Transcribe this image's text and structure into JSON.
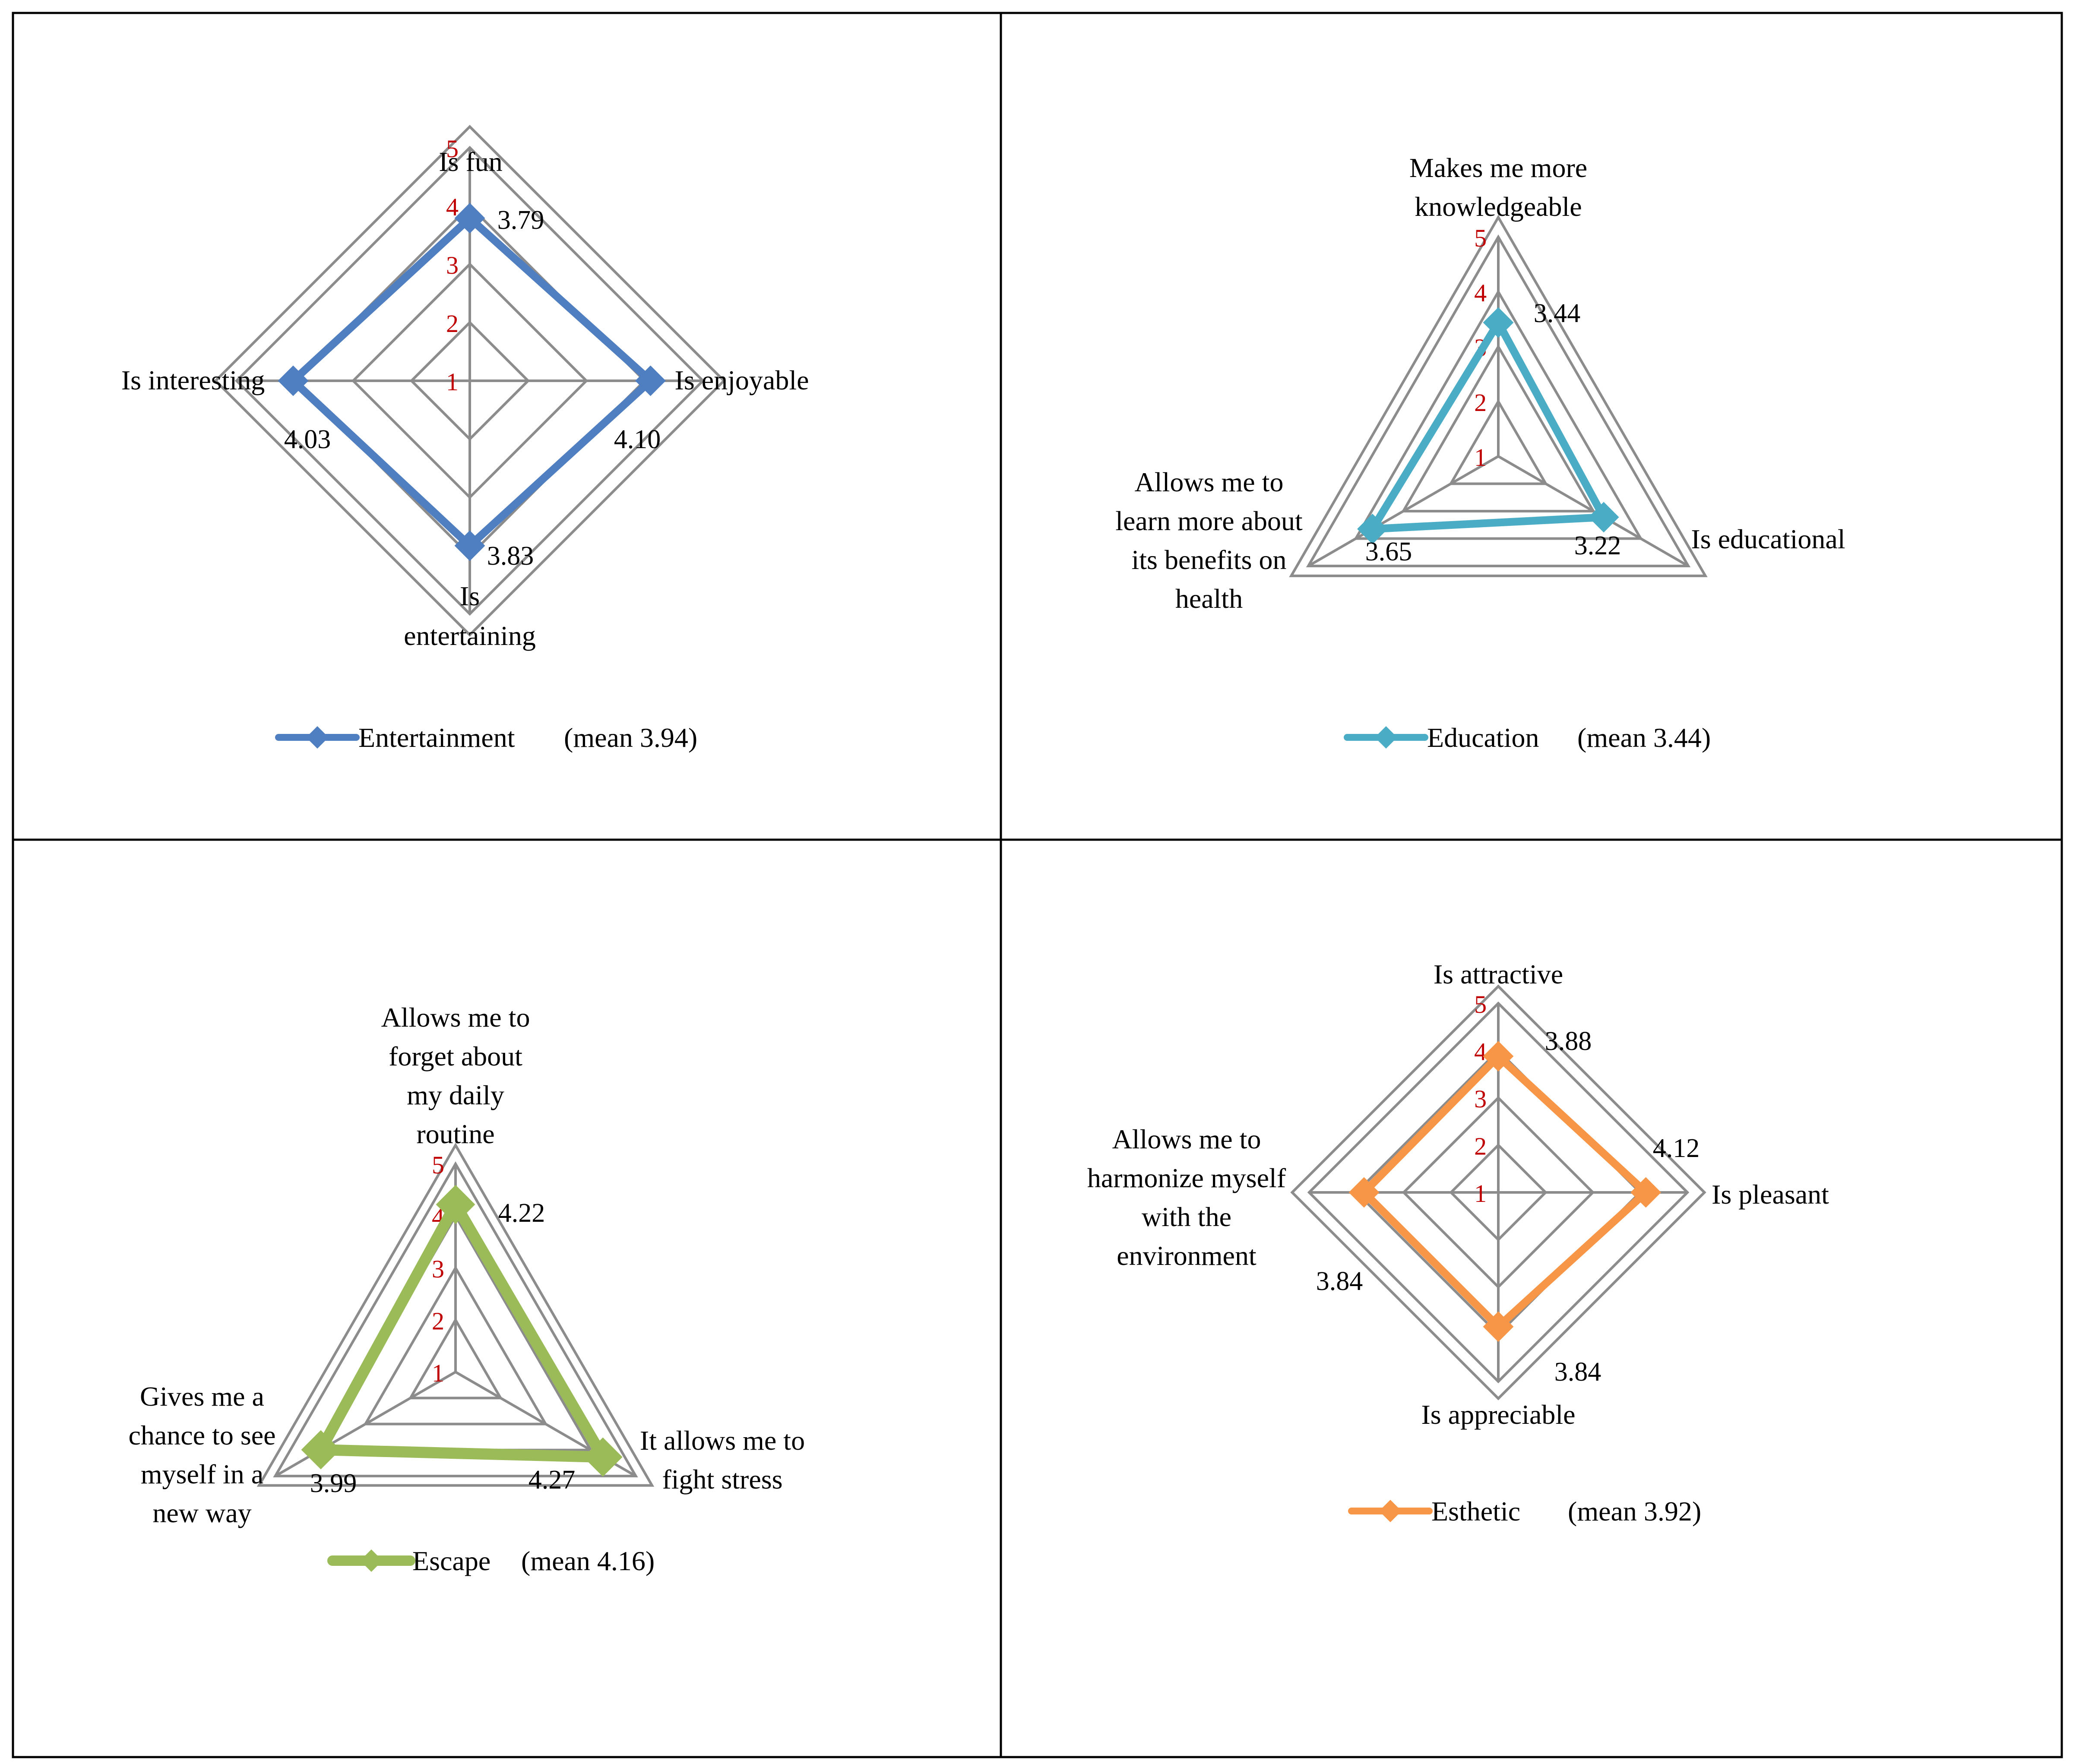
{
  "chart_data": [
    {
      "type": "radar",
      "series_name": "Entertainment",
      "legend_suffix": "(mean 3.94)",
      "color": "#4f7ec1",
      "marker": "diamond",
      "scale": {
        "min": 1,
        "max": 5,
        "ticks": [
          "1",
          "2",
          "3",
          "4",
          "5"
        ]
      },
      "axes": [
        {
          "label": [
            "Is fun"
          ],
          "value": 3.79,
          "value_label": "3.79"
        },
        {
          "label": [
            "Is enjoyable"
          ],
          "value": 4.1,
          "value_label": "4.10"
        },
        {
          "label": [
            "Is",
            "entertaining"
          ],
          "value": 3.83,
          "value_label": "3.83"
        },
        {
          "label": [
            "Is interesting"
          ],
          "value": 4.03,
          "value_label": "4.03"
        }
      ]
    },
    {
      "type": "radar",
      "series_name": "Education",
      "legend_suffix": "(mean  3.44)",
      "color": "#4bacc6",
      "marker": "diamond",
      "scale": {
        "min": 1,
        "max": 5,
        "ticks": [
          "1",
          "2",
          "3",
          "4",
          "5"
        ]
      },
      "axes": [
        {
          "label": [
            "Makes me more",
            "knowledgeable"
          ],
          "value": 3.44,
          "value_label": "3.44"
        },
        {
          "label": [
            "Is educational"
          ],
          "value": 3.22,
          "value_label": "3.22"
        },
        {
          "label": [
            "Allows me to",
            "learn more about",
            "its benefits on",
            "health"
          ],
          "value": 3.65,
          "value_label": "3.65"
        }
      ]
    },
    {
      "type": "radar",
      "series_name": "Escape",
      "legend_suffix": "(mean  4.16)",
      "color": "#9bbb59",
      "marker": "diamond",
      "scale": {
        "min": 1,
        "max": 5,
        "ticks": [
          "1",
          "2",
          "3",
          "4",
          "5"
        ]
      },
      "axes": [
        {
          "label": [
            "Allows me to",
            "forget about",
            "my daily",
            "routine"
          ],
          "value": 4.22,
          "value_label": "4.22"
        },
        {
          "label": [
            "It allows me to",
            "fight stress"
          ],
          "value": 4.27,
          "value_label": "4.27"
        },
        {
          "label": [
            "Gives me a",
            "chance to see",
            "myself in a",
            "new way"
          ],
          "value": 3.99,
          "value_label": "3.99"
        }
      ]
    },
    {
      "type": "radar",
      "series_name": "Esthetic",
      "legend_suffix": "(mean  3.92)",
      "color": "#f79646",
      "marker": "diamond",
      "scale": {
        "min": 1,
        "max": 5,
        "ticks": [
          "1",
          "2",
          "3",
          "4",
          "5"
        ]
      },
      "axes": [
        {
          "label": [
            "Is attractive"
          ],
          "value": 3.88,
          "value_label": "3.88"
        },
        {
          "label": [
            "Is pleasant"
          ],
          "value": 4.12,
          "value_label": "4.12"
        },
        {
          "label": [
            "Is appreciable"
          ],
          "value": 3.84,
          "value_label": "3.84"
        },
        {
          "label": [
            "Allows me to",
            "harmonize myself",
            "with the",
            "environment"
          ],
          "value": 3.84,
          "value_label": "3.84"
        }
      ]
    }
  ]
}
